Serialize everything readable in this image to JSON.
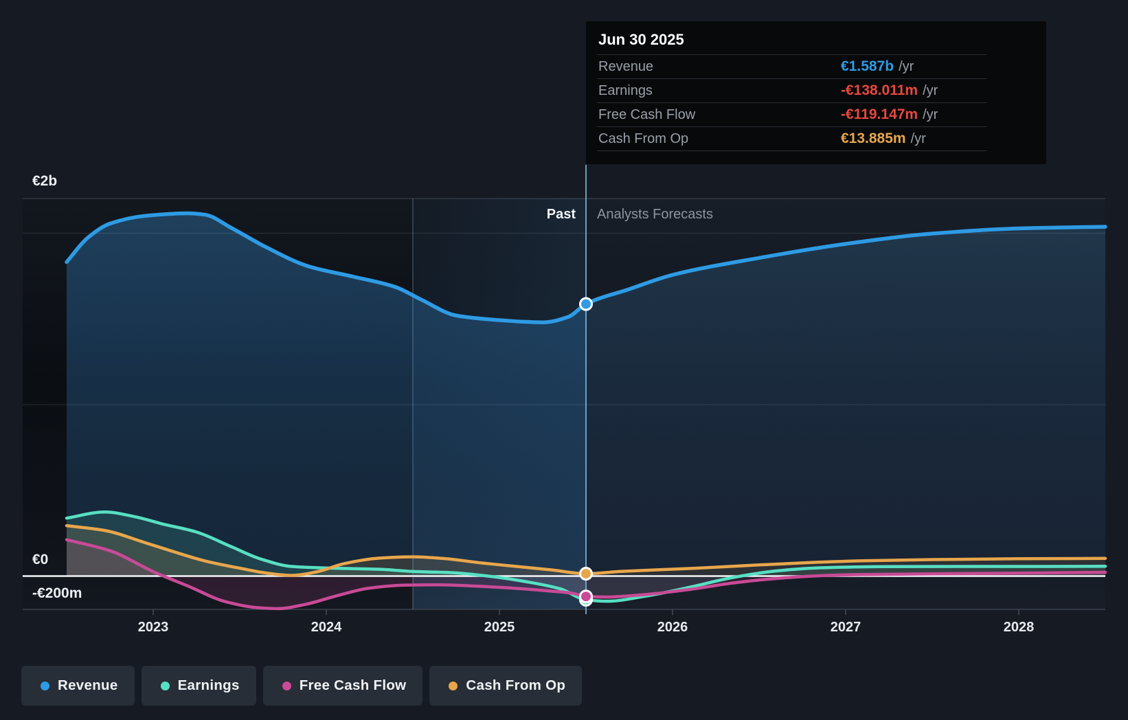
{
  "colors": {
    "revenue": "#2e9be4",
    "earnings": "#58dfc3",
    "free_cash_flow": "#c94a96",
    "cash_from_op": "#e8a64b",
    "negative_value": "#e8483f",
    "muted_label": "#9aa0a8",
    "background": "#161b23"
  },
  "tooltip": {
    "title": "Jun 30 2025",
    "rows": [
      {
        "label": "Revenue",
        "value": "€1.587b",
        "suffix": "/yr",
        "color": "#2e9be4"
      },
      {
        "label": "Earnings",
        "value": "-€138.011m",
        "suffix": "/yr",
        "color": "#e8483f"
      },
      {
        "label": "Free Cash Flow",
        "value": "-€119.147m",
        "suffix": "/yr",
        "color": "#e8483f"
      },
      {
        "label": "Cash From Op",
        "value": "€13.885m",
        "suffix": "/yr",
        "color": "#e8a64b"
      }
    ]
  },
  "axis": {
    "y_labels": [
      {
        "text": "€2b",
        "top": 252
      },
      {
        "text": "€0",
        "top": 803
      },
      {
        "text": "-€200m",
        "top": 852
      }
    ],
    "x_ticks": [
      {
        "text": "2023",
        "year": 2023
      },
      {
        "text": "2024",
        "year": 2024
      },
      {
        "text": "2025",
        "year": 2025
      },
      {
        "text": "2026",
        "year": 2026
      },
      {
        "text": "2027",
        "year": 2027
      },
      {
        "text": "2028",
        "year": 2028
      }
    ]
  },
  "zones": {
    "past_label": "Past",
    "forecast_label": "Analysts Forecasts"
  },
  "legend": [
    {
      "label": "Revenue",
      "color": "#2e9be4"
    },
    {
      "label": "Earnings",
      "color": "#58dfc3"
    },
    {
      "label": "Free Cash Flow",
      "color": "#c94a96"
    },
    {
      "label": "Cash From Op",
      "color": "#e8a64b"
    }
  ],
  "chart_data": {
    "type": "line",
    "unit": "EUR millions",
    "xlim": [
      2022.5,
      2028.5
    ],
    "ylim": [
      -200,
      2200
    ],
    "gridline_values": [
      2000,
      1000
    ],
    "zero_line": 0,
    "divider_t": 2025.5,
    "highlight_band": [
      2024.5,
      2025.5
    ],
    "legend_position": "bottom",
    "marker_date": "Jun 30 2025",
    "markers": [
      {
        "series": "Revenue",
        "t": 2025.5,
        "value": 1587
      },
      {
        "series": "Earnings",
        "t": 2025.5,
        "value": -138.011
      },
      {
        "series": "Free Cash Flow",
        "t": 2025.5,
        "value": -119.147
      },
      {
        "series": "Cash From Op",
        "t": 2025.5,
        "value": 13.885
      }
    ],
    "series": [
      {
        "name": "Revenue",
        "color": "#2e9be4",
        "points": [
          [
            2022.5,
            1832
          ],
          [
            2022.62,
            1972
          ],
          [
            2022.75,
            2056
          ],
          [
            2022.95,
            2101
          ],
          [
            2023.2,
            2116
          ],
          [
            2023.3,
            2108
          ],
          [
            2023.45,
            2032
          ],
          [
            2023.65,
            1920
          ],
          [
            2023.9,
            1806
          ],
          [
            2024.15,
            1748
          ],
          [
            2024.4,
            1686
          ],
          [
            2024.55,
            1612
          ],
          [
            2024.75,
            1520
          ],
          [
            2025.0,
            1493
          ],
          [
            2025.25,
            1480
          ],
          [
            2025.4,
            1513
          ],
          [
            2025.5,
            1587
          ],
          [
            2025.75,
            1674
          ],
          [
            2026.0,
            1757
          ],
          [
            2026.5,
            1856
          ],
          [
            2027.0,
            1938
          ],
          [
            2027.5,
            1998
          ],
          [
            2028.0,
            2028
          ],
          [
            2028.5,
            2038
          ]
        ]
      },
      {
        "name": "Earnings",
        "color": "#58dfc3",
        "points": [
          [
            2022.5,
            338
          ],
          [
            2022.72,
            374
          ],
          [
            2022.9,
            345
          ],
          [
            2023.05,
            305
          ],
          [
            2023.25,
            257
          ],
          [
            2023.45,
            172
          ],
          [
            2023.62,
            100
          ],
          [
            2023.8,
            56
          ],
          [
            2024.0,
            47
          ],
          [
            2024.3,
            40
          ],
          [
            2024.5,
            27
          ],
          [
            2024.72,
            20
          ],
          [
            2024.95,
            -2
          ],
          [
            2025.15,
            -32
          ],
          [
            2025.35,
            -74
          ],
          [
            2025.5,
            -138.011
          ],
          [
            2025.62,
            -147
          ],
          [
            2025.85,
            -116
          ],
          [
            2026.1,
            -65
          ],
          [
            2026.35,
            -8
          ],
          [
            2026.6,
            30
          ],
          [
            2026.85,
            48
          ],
          [
            2027.2,
            55
          ],
          [
            2027.7,
            56
          ],
          [
            2028.1,
            56
          ],
          [
            2028.5,
            57
          ]
        ]
      },
      {
        "name": "Free Cash Flow",
        "color": "#c94a96",
        "points": [
          [
            2022.5,
            212
          ],
          [
            2022.75,
            148
          ],
          [
            2023.0,
            26
          ],
          [
            2023.2,
            -58
          ],
          [
            2023.42,
            -150
          ],
          [
            2023.6,
            -184
          ],
          [
            2023.72,
            -190
          ],
          [
            2023.88,
            -165
          ],
          [
            2024.05,
            -118
          ],
          [
            2024.25,
            -70
          ],
          [
            2024.45,
            -53
          ],
          [
            2024.65,
            -51
          ],
          [
            2024.85,
            -58
          ],
          [
            2025.1,
            -72
          ],
          [
            2025.3,
            -88
          ],
          [
            2025.42,
            -100
          ],
          [
            2025.5,
            -119.147
          ],
          [
            2025.62,
            -122
          ],
          [
            2025.85,
            -107
          ],
          [
            2026.1,
            -78
          ],
          [
            2026.35,
            -40
          ],
          [
            2026.6,
            -14
          ],
          [
            2026.85,
            2
          ],
          [
            2027.1,
            9
          ],
          [
            2027.6,
            14
          ],
          [
            2028.0,
            17
          ],
          [
            2028.5,
            22
          ]
        ]
      },
      {
        "name": "Cash From Op",
        "color": "#e8a64b",
        "points": [
          [
            2022.5,
            294
          ],
          [
            2022.72,
            266
          ],
          [
            2022.95,
            196
          ],
          [
            2023.1,
            148
          ],
          [
            2023.3,
            88
          ],
          [
            2023.5,
            46
          ],
          [
            2023.68,
            14
          ],
          [
            2023.8,
            4
          ],
          [
            2023.95,
            26
          ],
          [
            2024.1,
            72
          ],
          [
            2024.3,
            104
          ],
          [
            2024.5,
            112
          ],
          [
            2024.68,
            102
          ],
          [
            2024.9,
            76
          ],
          [
            2025.1,
            56
          ],
          [
            2025.3,
            36
          ],
          [
            2025.5,
            13.885
          ],
          [
            2025.7,
            27
          ],
          [
            2025.95,
            38
          ],
          [
            2026.2,
            49
          ],
          [
            2026.5,
            65
          ],
          [
            2026.8,
            79
          ],
          [
            2027.1,
            89
          ],
          [
            2027.5,
            96
          ],
          [
            2028.0,
            101
          ],
          [
            2028.5,
            103
          ]
        ]
      }
    ]
  }
}
